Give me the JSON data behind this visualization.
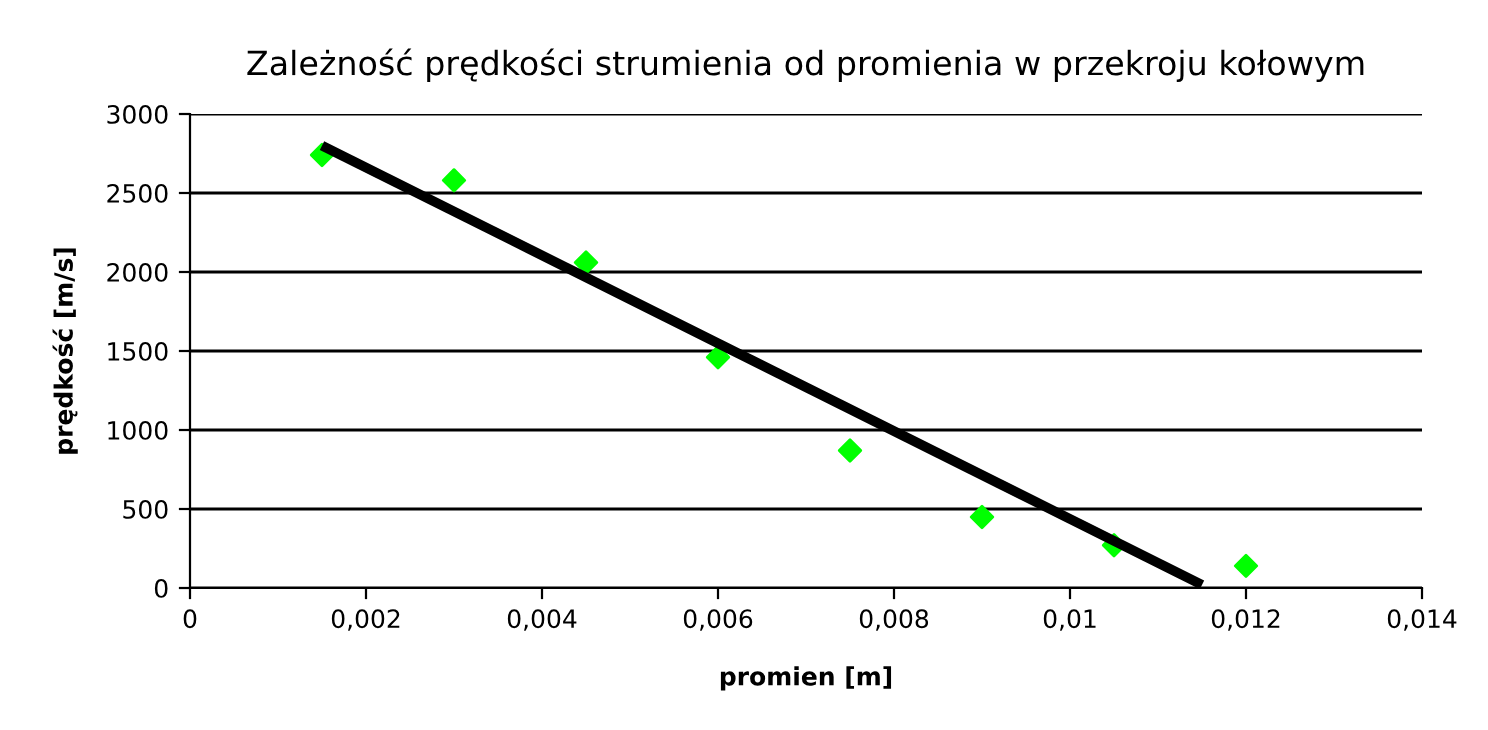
{
  "chart_data": {
    "type": "scatter",
    "title": "Zależność prędkości strumienia od promienia w przekroju kołowym",
    "xlabel": "promien [m]",
    "ylabel": "prędkość [m/s]",
    "series": [
      {
        "color": "#00ff00",
        "marker": "diamond",
        "x": [
          0.0015,
          0.003,
          0.0045,
          0.006,
          0.0075,
          0.009,
          0.0105,
          0.012
        ],
        "values": [
          2740,
          2580,
          2060,
          1460,
          870,
          450,
          270,
          140
        ]
      },
      {
        "type": "line",
        "color": "#000000",
        "marker": "none",
        "line_style": "solid",
        "x": [
          0.0015,
          0.0115
        ],
        "values": [
          2800,
          20
        ]
      }
    ],
    "xlim": [
      0,
      0.014
    ],
    "ylim": [
      0,
      3000
    ],
    "xticks": [
      0,
      {
        "value": 0.002,
        "label": "0,002"
      },
      {
        "value": 0.004,
        "label": "0,004"
      },
      {
        "value": 0.006,
        "label": "0,006"
      },
      {
        "value": 0.008,
        "label": "0,008"
      },
      {
        "value": 0.01,
        "label": "0,01"
      },
      {
        "value": 0.012,
        "label": "0,012"
      },
      {
        "value": 0.014,
        "label": "0,014"
      }
    ],
    "yticks": [
      0,
      500,
      1000,
      1500,
      2000,
      2500,
      3000
    ],
    "grid": "y",
    "legend": false
  }
}
